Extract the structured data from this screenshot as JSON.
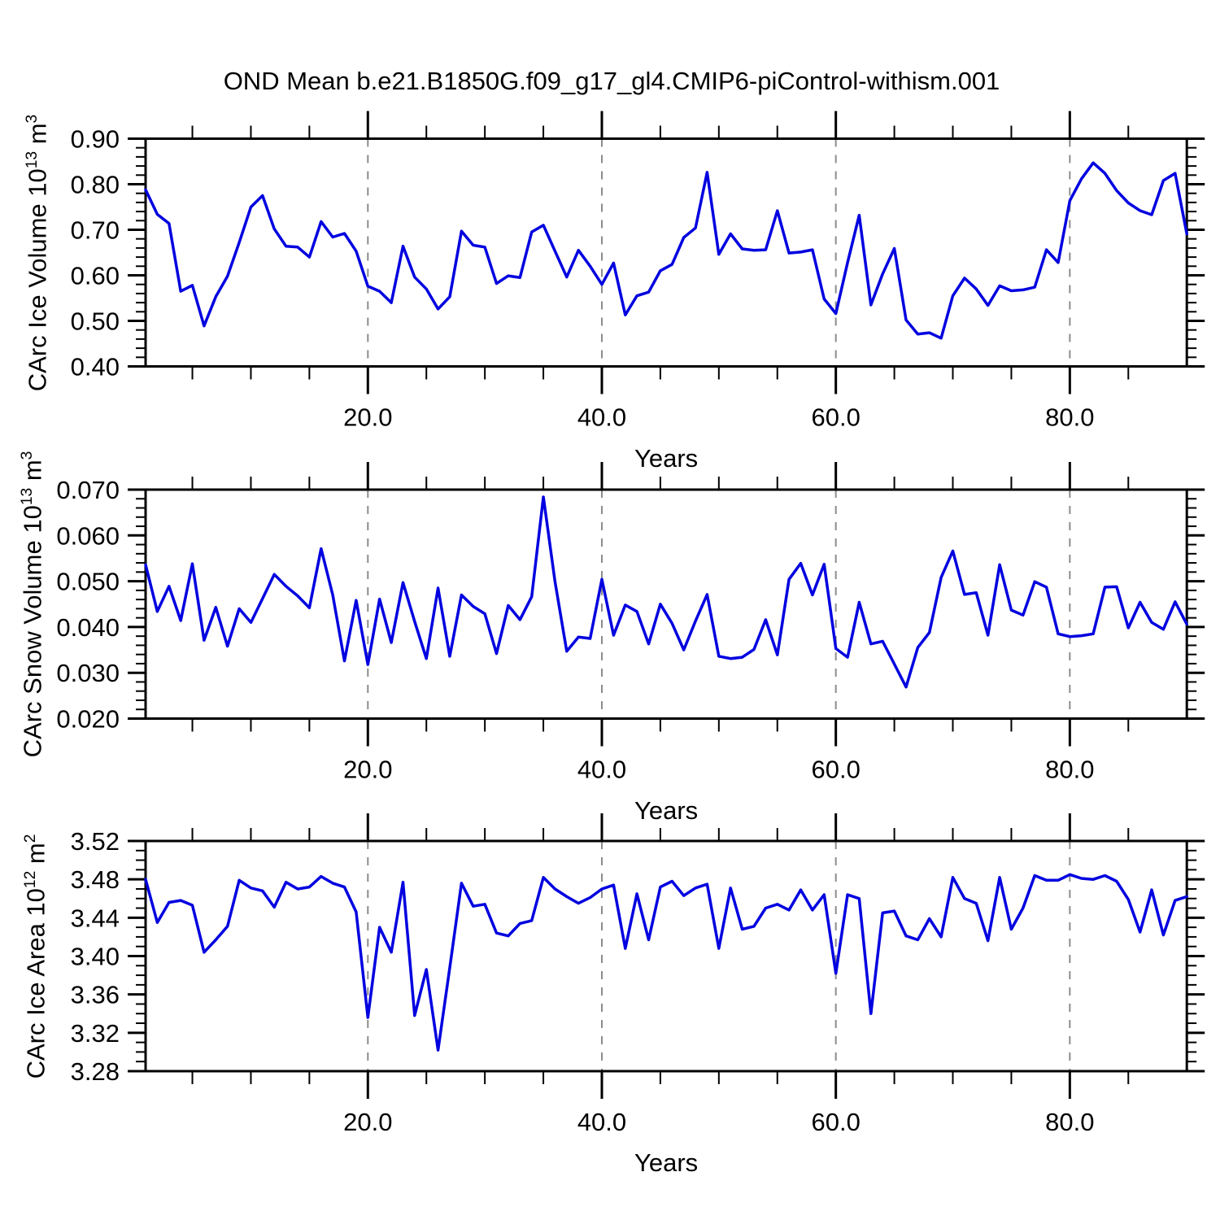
{
  "title": "OND Mean b.e21.B1850G.f09_g17_gl4.CMIP6-piControl-withism.001",
  "figure": {
    "line_color": "#0101e0",
    "grid_color": "#8c8c8c",
    "axis_color": "#000000",
    "grid_style": "vertical-dashed"
  },
  "chart_data": [
    {
      "type": "line",
      "name": "carc-ice-volume",
      "ylabel": "CArc Ice Volume",
      "y_scale_base": "10",
      "y_scale_exp": "13",
      "y_unit": "m",
      "y_unit_exp": "3",
      "xlabel": "Years",
      "xlim": [
        1,
        90
      ],
      "ylim": [
        0.4,
        0.9
      ],
      "xtick_values": [
        20,
        40,
        60,
        80
      ],
      "xtick_labels": [
        "20.0",
        "40.0",
        "60.0",
        "80.0"
      ],
      "x_minor_step": 5,
      "ytick_values": [
        0.9,
        0.8,
        0.7,
        0.6,
        0.5,
        0.4
      ],
      "ytick_labels": [
        "0.90",
        "0.80",
        "0.70",
        "0.60",
        "0.50",
        "0.40"
      ],
      "y_minor_step": 0.02,
      "gridline_years": [
        20,
        40,
        60,
        80
      ],
      "legend": "none",
      "x_start": 1,
      "x_step": 1,
      "values": [
        0.788,
        0.734,
        0.714,
        0.565,
        0.578,
        0.489,
        0.553,
        0.598,
        0.672,
        0.75,
        0.775,
        0.702,
        0.664,
        0.662,
        0.64,
        0.718,
        0.684,
        0.692,
        0.653,
        0.576,
        0.565,
        0.54,
        0.664,
        0.596,
        0.57,
        0.526,
        0.553,
        0.697,
        0.666,
        0.662,
        0.582,
        0.599,
        0.595,
        0.695,
        0.71,
        0.653,
        0.596,
        0.655,
        0.62,
        0.58,
        0.627,
        0.513,
        0.555,
        0.563,
        0.61,
        0.624,
        0.683,
        0.704,
        0.826,
        0.646,
        0.691,
        0.658,
        0.655,
        0.656,
        0.742,
        0.649,
        0.651,
        0.656,
        0.548,
        0.516,
        0.628,
        0.732,
        0.535,
        0.603,
        0.659,
        0.502,
        0.471,
        0.474,
        0.462,
        0.555,
        0.594,
        0.57,
        0.534,
        0.577,
        0.566,
        0.568,
        0.574,
        0.656,
        0.628,
        0.764,
        0.812,
        0.847,
        0.824,
        0.786,
        0.759,
        0.742,
        0.733,
        0.808,
        0.824,
        0.691
      ]
    },
    {
      "type": "line",
      "name": "carc-snow-volume",
      "ylabel": "CArc Snow Volume",
      "y_scale_base": "10",
      "y_scale_exp": "13",
      "y_unit": "m",
      "y_unit_exp": "3",
      "xlabel": "Years",
      "xlim": [
        1,
        90
      ],
      "ylim": [
        0.02,
        0.07
      ],
      "xtick_values": [
        20,
        40,
        60,
        80
      ],
      "xtick_labels": [
        "20.0",
        "40.0",
        "60.0",
        "80.0"
      ],
      "x_minor_step": 5,
      "ytick_values": [
        0.07,
        0.06,
        0.05,
        0.04,
        0.03,
        0.02
      ],
      "ytick_labels": [
        "0.070",
        "0.060",
        "0.050",
        "0.040",
        "0.030",
        "0.020"
      ],
      "y_minor_step": 0.002,
      "gridline_years": [
        20,
        40,
        60,
        80
      ],
      "legend": "none",
      "x_start": 1,
      "x_step": 1,
      "values": [
        0.0536,
        0.0434,
        0.0489,
        0.0414,
        0.0538,
        0.0371,
        0.0443,
        0.0358,
        0.044,
        0.041,
        0.0462,
        0.0515,
        0.0489,
        0.0468,
        0.0442,
        0.0571,
        0.047,
        0.0326,
        0.0458,
        0.0318,
        0.0461,
        0.0366,
        0.0497,
        0.0412,
        0.0331,
        0.0485,
        0.0336,
        0.047,
        0.0445,
        0.0429,
        0.0342,
        0.0447,
        0.0416,
        0.0466,
        0.0684,
        0.0499,
        0.0347,
        0.0378,
        0.0375,
        0.0504,
        0.0382,
        0.0448,
        0.0434,
        0.0363,
        0.045,
        0.0408,
        0.035,
        0.0413,
        0.0471,
        0.0336,
        0.0331,
        0.0334,
        0.0351,
        0.0416,
        0.0339,
        0.0504,
        0.0539,
        0.047,
        0.0537,
        0.0353,
        0.0334,
        0.0454,
        0.0363,
        0.0369,
        0.0319,
        0.0269,
        0.0355,
        0.0388,
        0.0508,
        0.0566,
        0.0471,
        0.0475,
        0.0382,
        0.0536,
        0.0437,
        0.0426,
        0.0499,
        0.0487,
        0.0385,
        0.0379,
        0.0381,
        0.0385,
        0.0487,
        0.0488,
        0.0398,
        0.0454,
        0.041,
        0.0395,
        0.0455,
        0.0406
      ]
    },
    {
      "type": "line",
      "name": "carc-ice-area",
      "ylabel": "CArc Ice Area",
      "y_scale_base": "10",
      "y_scale_exp": "12",
      "y_unit": "m",
      "y_unit_exp": "2",
      "xlabel": "Years",
      "xlim": [
        1,
        90
      ],
      "ylim": [
        3.28,
        3.52
      ],
      "xtick_values": [
        20,
        40,
        60,
        80
      ],
      "xtick_labels": [
        "20.0",
        "40.0",
        "60.0",
        "80.0"
      ],
      "x_minor_step": 5,
      "ytick_values": [
        3.52,
        3.48,
        3.44,
        3.4,
        3.36,
        3.32,
        3.28
      ],
      "ytick_labels": [
        "3.52",
        "3.48",
        "3.44",
        "3.40",
        "3.36",
        "3.32",
        "3.28"
      ],
      "y_minor_step": 0.01,
      "gridline_years": [
        20,
        40,
        60,
        80
      ],
      "legend": "none",
      "x_start": 1,
      "x_step": 1,
      "values": [
        3.48,
        3.435,
        3.456,
        3.458,
        3.453,
        3.404,
        3.417,
        3.431,
        3.479,
        3.471,
        3.468,
        3.451,
        3.477,
        3.47,
        3.472,
        3.483,
        3.476,
        3.472,
        3.446,
        3.336,
        3.43,
        3.404,
        3.477,
        3.338,
        3.386,
        3.302,
        3.388,
        3.476,
        3.452,
        3.454,
        3.424,
        3.421,
        3.434,
        3.437,
        3.482,
        3.47,
        3.462,
        3.455,
        3.461,
        3.47,
        3.474,
        3.408,
        3.465,
        3.417,
        3.472,
        3.478,
        3.463,
        3.471,
        3.475,
        3.408,
        3.471,
        3.428,
        3.431,
        3.45,
        3.454,
        3.448,
        3.469,
        3.448,
        3.464,
        3.382,
        3.464,
        3.46,
        3.34,
        3.445,
        3.447,
        3.421,
        3.417,
        3.439,
        3.42,
        3.482,
        3.46,
        3.455,
        3.416,
        3.482,
        3.428,
        3.45,
        3.484,
        3.479,
        3.479,
        3.485,
        3.481,
        3.48,
        3.484,
        3.478,
        3.459,
        3.425,
        3.469,
        3.422,
        3.458,
        3.462
      ]
    }
  ]
}
